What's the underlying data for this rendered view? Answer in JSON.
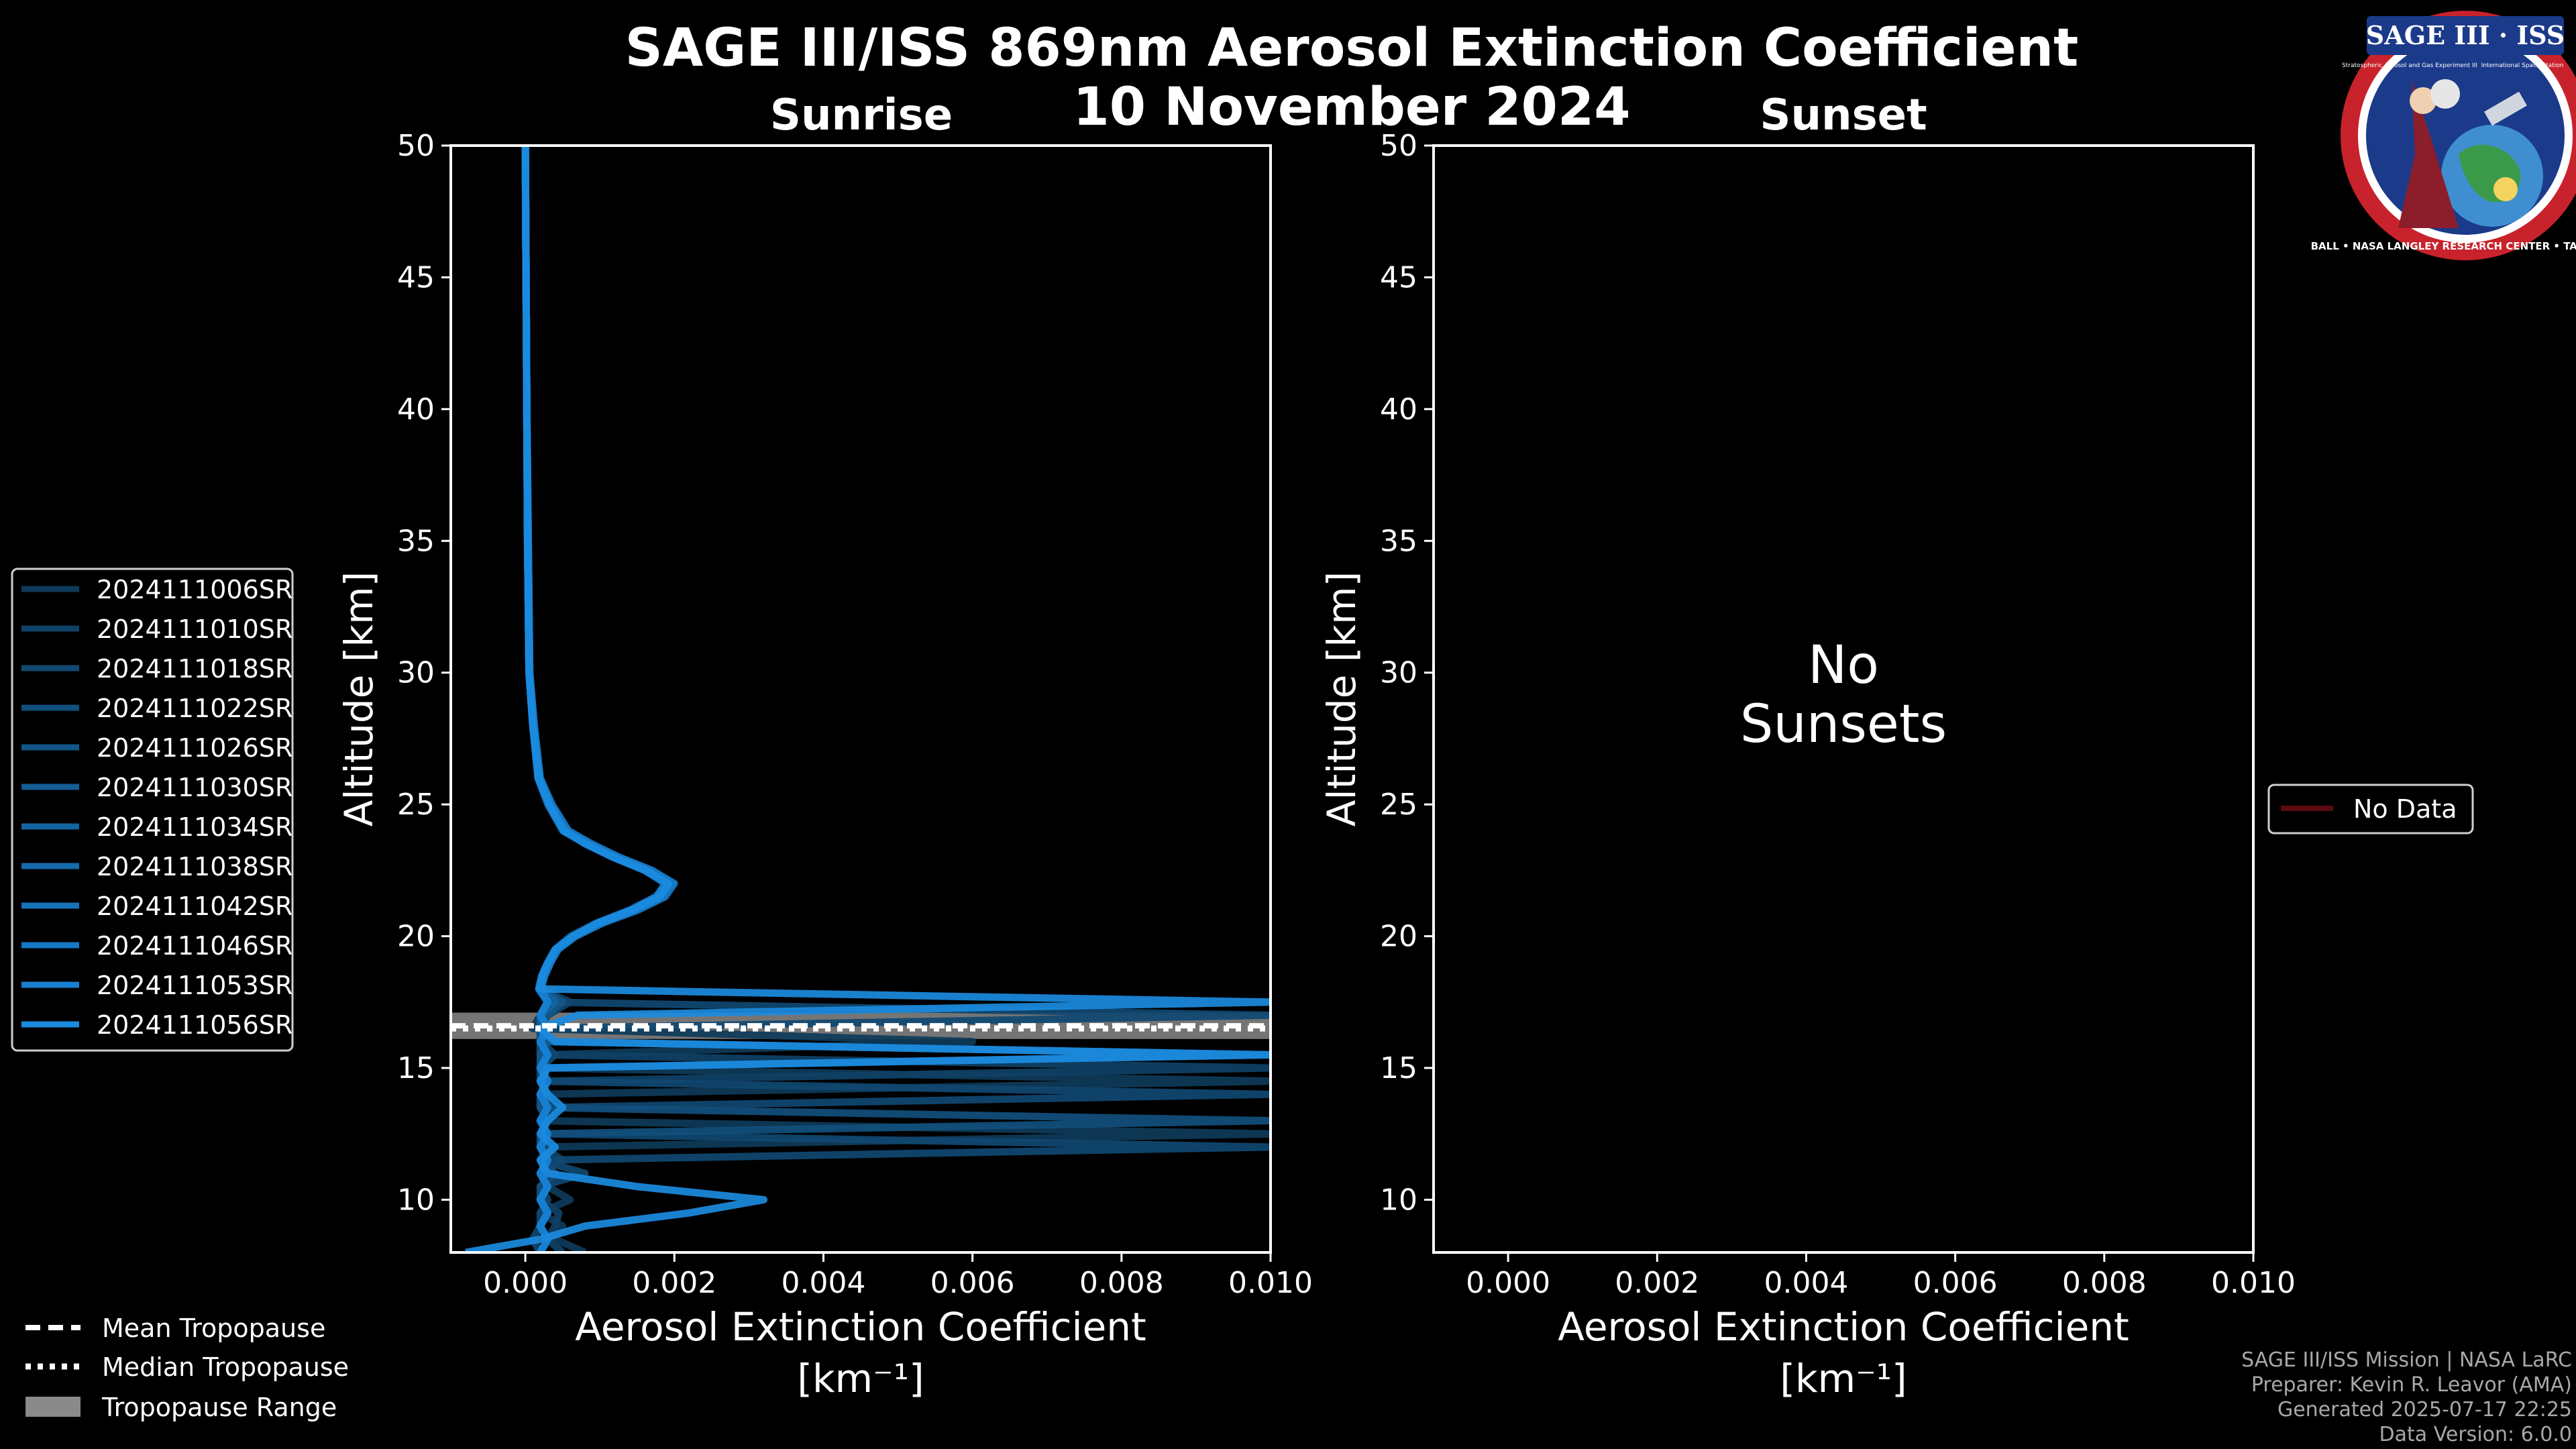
{
  "title": "SAGE III/ISS 869nm Aerosol Extinction Coefficient",
  "date": "10 November 2024",
  "logo": {
    "title": "SAGE III · ISS",
    "ring_text": "BALL • NASA LANGLEY RESEARCH CENTER • TAS • ESA",
    "small_text_left": "Stratospheric Aerosol and Gas Experiment III",
    "small_text_right": "International Space Station"
  },
  "credits": [
    "SAGE III/ISS Mission | NASA LaRC",
    "Preparer: Kevin R. Leavor (AMA)",
    "Generated 2025-07-17 22:25",
    "Data Version: 6.0.0"
  ],
  "legend_left": {
    "entries": [
      "2024111006SR",
      "2024111010SR",
      "2024111018SR",
      "2024111022SR",
      "2024111026SR",
      "2024111030SR",
      "2024111034SR",
      "2024111038SR",
      "2024111042SR",
      "2024111046SR",
      "2024111053SR",
      "2024111056SR"
    ],
    "colors": [
      "#0e3b5a",
      "#0f4166",
      "#104871",
      "#114f7d",
      "#125689",
      "#135d95",
      "#1464a1",
      "#156bad",
      "#1672b9",
      "#1779c5",
      "#1880d1",
      "#1b8bdf"
    ]
  },
  "legend_tropopause": {
    "mean": "Mean Tropopause",
    "median": "Median Tropopause",
    "range": "Tropopause Range"
  },
  "legend_right": {
    "label": "No Data",
    "color": "#5a0a10"
  },
  "chart_data": [
    {
      "type": "line",
      "panel": "Sunrise",
      "title": "Sunrise",
      "xlabel": "Aerosol Extinction Coefficient",
      "xunit": "[km⁻¹]",
      "ylabel": "Altitude [km]",
      "xlim": [
        -0.001,
        0.01
      ],
      "ylim": [
        8,
        50
      ],
      "xticks": [
        "0.000",
        "0.002",
        "0.004",
        "0.006",
        "0.008",
        "0.010"
      ],
      "xtick_values": [
        0,
        0.002,
        0.004,
        0.006,
        0.008,
        0.01
      ],
      "yticks": [
        10,
        15,
        20,
        25,
        30,
        35,
        40,
        45,
        50
      ],
      "tropopause": {
        "mean": 16.6,
        "median": 16.5,
        "range": [
          16.1,
          17.1
        ]
      },
      "altitude": [
        50,
        45,
        40,
        35,
        30,
        28,
        26,
        25,
        24,
        23.5,
        23,
        22.5,
        22,
        21.5,
        21,
        20.5,
        20,
        19.5,
        19,
        18.5,
        18,
        17.5,
        17,
        16.5,
        16,
        15.5,
        15,
        14.5,
        14,
        13.5,
        13,
        12.5,
        12,
        11.5,
        11,
        10.5,
        10,
        9.5,
        9,
        8.5,
        8
      ],
      "series": [
        {
          "name": "2024111006SR",
          "values": [
            0,
            1e-05,
            2e-05,
            3e-05,
            5e-05,
            0.0001,
            0.00018,
            0.00032,
            0.00052,
            0.0008,
            0.00118,
            0.0016,
            0.0019,
            0.00175,
            0.0014,
            0.00095,
            0.0006,
            0.0004,
            0.0003,
            0.00022,
            0.00018,
            0.00035,
            0.0002,
            0.0001,
            0.006,
            0.0003,
            0.0002,
            0.01,
            0.0002,
            0.0004,
            0.0002,
            0.01,
            0.00025,
            0.0005,
            0.0002,
            0.0003,
            0.0006,
            0.0002,
            0.0005,
            0.0004,
            0.0008
          ]
        },
        {
          "name": "2024111010SR",
          "values": [
            0,
            1e-05,
            2e-05,
            4e-05,
            6e-05,
            0.00012,
            0.0002,
            0.00035,
            0.00058,
            0.0009,
            0.00125,
            0.0017,
            0.00198,
            0.00185,
            0.0015,
            0.001,
            0.00065,
            0.00042,
            0.00032,
            0.00024,
            0.0002,
            0.0006,
            0.0003,
            0.0002,
            0.0003,
            0.0002,
            0.01,
            0.0003,
            0.0002,
            0.0004,
            0.0003,
            0.0002,
            0.00025,
            0.00045,
            0.0002,
            0.0003,
            0.0002,
            0.00045,
            0.0004,
            0.0003,
            0.0005
          ]
        },
        {
          "name": "2024111018SR",
          "values": [
            0,
            1e-05,
            2e-05,
            3e-05,
            5e-05,
            0.0001,
            0.00017,
            0.0003,
            0.0005,
            0.00082,
            0.0012,
            0.00163,
            0.00192,
            0.0018,
            0.00145,
            0.00098,
            0.00064,
            0.0004,
            0.00031,
            0.00023,
            0.00019,
            0.0003,
            0.01,
            0.0002,
            0.0002,
            0.0004,
            0.0002,
            0.0002,
            0.01,
            0.0003,
            0.0002,
            0.0003,
            0.01,
            0.0002,
            0.0008,
            0.0002,
            0.0003,
            0.0002,
            0.0002,
            0.0001,
            0.0002
          ]
        },
        {
          "name": "2024111022SR",
          "values": [
            0,
            1e-05,
            2e-05,
            3e-05,
            6e-05,
            0.00011,
            0.00019,
            0.00034,
            0.00055,
            0.00086,
            0.00122,
            0.00166,
            0.00195,
            0.00182,
            0.00148,
            0.00102,
            0.00066,
            0.00043,
            0.00033,
            0.00025,
            0.0002,
            0.0004,
            0.0002,
            0.0003,
            0.0002,
            0.0002,
            0.0003,
            0.0002,
            0.0003,
            0.0002,
            0.01,
            0.0002,
            0.0003,
            0.0002,
            0.0004,
            0.0002,
            0.0002,
            0.0003,
            0.0002,
            0.0003,
            0.0002
          ]
        },
        {
          "name": "2024111026SR",
          "values": [
            0,
            1e-05,
            2e-05,
            3e-05,
            5e-05,
            0.0001,
            0.00018,
            0.00033,
            0.00054,
            0.00084,
            0.0012,
            0.00164,
            0.00193,
            0.0018,
            0.00146,
            0.001,
            0.00065,
            0.00042,
            0.00032,
            0.00024,
            0.0002,
            0.0005,
            0.0003,
            0.0002,
            0.0003,
            0.0002,
            0.0002,
            0.0003,
            0.0002,
            0.0002,
            0.0003,
            0.0002,
            0.0002,
            0.0003,
            0.0002,
            0.0003,
            0.0002,
            0.0003,
            0.0002,
            0.0003,
            0.0002
          ]
        },
        {
          "name": "2024111030SR",
          "values": [
            0,
            1e-05,
            2e-05,
            4e-05,
            6e-05,
            0.00012,
            0.0002,
            0.00036,
            0.00058,
            0.00088,
            0.00126,
            0.0017,
            0.002,
            0.00188,
            0.00152,
            0.00104,
            0.00068,
            0.00044,
            0.00034,
            0.00026,
            0.00021,
            0.0003,
            0.0002,
            0.0002,
            0.0003,
            0.01,
            0.0002,
            0.0003,
            0.0002,
            0.0003,
            0.0002,
            0.0003,
            0.0002,
            0.0003,
            0.0002,
            0.0003,
            0.0002,
            0.0003,
            0.0002,
            0.0003,
            0.0002
          ]
        },
        {
          "name": "2024111034SR",
          "values": [
            0,
            1e-05,
            2e-05,
            3e-05,
            5e-05,
            0.0001,
            0.00018,
            0.00032,
            0.00053,
            0.00083,
            0.00119,
            0.00162,
            0.00191,
            0.00179,
            0.00144,
            0.00098,
            0.00064,
            0.00041,
            0.00031,
            0.00023,
            0.00019,
            0.0004,
            0.0002,
            0.0003,
            0.0002,
            0.0003,
            0.0002,
            0.0003,
            0.0002,
            0.0003,
            0.0002,
            0.0003,
            0.0002,
            0.0003,
            0.0002,
            0.0003,
            0.0002,
            0.0003,
            0.0002,
            0.0003,
            0.0002
          ]
        },
        {
          "name": "2024111038SR",
          "values": [
            0,
            1e-05,
            2e-05,
            3e-05,
            5e-05,
            0.00011,
            0.00019,
            0.00034,
            0.00056,
            0.00087,
            0.00124,
            0.00168,
            0.00197,
            0.00184,
            0.00149,
            0.00102,
            0.00066,
            0.00043,
            0.00033,
            0.00025,
            0.0002,
            0.0003,
            0.0002,
            0.0003,
            0.0002,
            0.0003,
            0.0002,
            0.0003,
            0.0002,
            0.0003,
            0.0002,
            0.0003,
            0.0002,
            0.0003,
            0.0002,
            0.0003,
            0.0002,
            0.0003,
            0.0002,
            0.0003,
            0.0002
          ]
        },
        {
          "name": "2024111042SR",
          "values": [
            0,
            1e-05,
            2e-05,
            3e-05,
            5e-05,
            0.0001,
            0.00018,
            0.00033,
            0.00054,
            0.00085,
            0.00121,
            0.00165,
            0.00194,
            0.00181,
            0.00147,
            0.001,
            0.00065,
            0.00042,
            0.00032,
            0.00024,
            0.0002,
            0.0003,
            0.0002,
            0.0003,
            0.0002,
            0.0003,
            0.0002,
            0.0003,
            0.0002,
            0.0003,
            0.0002,
            0.0003,
            0.0002,
            0.0003,
            0.0002,
            0.0003,
            0.0002,
            0.0003,
            0.0002,
            0.0003,
            0.0002
          ]
        },
        {
          "name": "2024111046SR",
          "values": [
            0,
            1e-05,
            2e-05,
            4e-05,
            6e-05,
            0.00012,
            0.0002,
            0.00035,
            0.00057,
            0.00088,
            0.00125,
            0.00169,
            0.00199,
            0.00186,
            0.0015,
            0.00103,
            0.00067,
            0.00044,
            0.00034,
            0.00026,
            0.00021,
            0.0003,
            0.0002,
            0.0003,
            0.0002,
            0.0003,
            0.0002,
            0.0003,
            0.0002,
            0.0003,
            0.0002,
            0.0003,
            0.0002,
            0.0003,
            0.0002,
            0.0003,
            0.0002,
            0.0003,
            0.0002,
            0.0003,
            0.0002
          ]
        },
        {
          "name": "2024111053SR",
          "values": [
            0,
            1e-05,
            2e-05,
            3e-05,
            5e-05,
            0.0001,
            0.00017,
            0.00031,
            0.00051,
            0.00081,
            0.00117,
            0.0016,
            0.00188,
            0.00176,
            0.00142,
            0.00097,
            0.00063,
            0.0004,
            0.0003,
            0.00022,
            0.00018,
            0.0003,
            0.0002,
            0.0003,
            0.0002,
            0.0003,
            0.0002,
            0.0003,
            0.0002,
            0.0003,
            0.0002,
            0.0003,
            0.0002,
            0.0003,
            0.0002,
            0.0003,
            0.0002,
            0.0003,
            0.0002,
            0.0003,
            0.0002
          ]
        },
        {
          "name": "2024111056SR",
          "values": [
            0,
            1e-05,
            2e-05,
            3e-05,
            5e-05,
            0.0001,
            0.00018,
            0.00032,
            0.00052,
            0.00082,
            0.00118,
            0.00162,
            0.00192,
            0.0018,
            0.00145,
            0.00098,
            0.00064,
            0.00041,
            0.00031,
            0.00023,
            0.0002,
            0.01,
            0.0007,
            0.0002,
            0.0004,
            0.01,
            0.0003,
            0.0002,
            0.0003,
            0.0005,
            0.0003,
            0.0002,
            0.0004,
            0.0002,
            0.0003,
            0.0015,
            0.0032,
            0.0022,
            0.0008,
            0.0002,
            -0.0008
          ]
        }
      ]
    },
    {
      "type": "line",
      "panel": "Sunset",
      "title": "Sunset",
      "xlabel": "Aerosol Extinction Coefficient",
      "xunit": "[km⁻¹]",
      "ylabel": "Altitude [km]",
      "xlim": [
        -0.001,
        0.01
      ],
      "ylim": [
        8,
        50
      ],
      "xticks": [
        "0.000",
        "0.002",
        "0.004",
        "0.006",
        "0.008",
        "0.010"
      ],
      "xtick_values": [
        0,
        0.002,
        0.004,
        0.006,
        0.008,
        0.01
      ],
      "yticks": [
        10,
        15,
        20,
        25,
        30,
        35,
        40,
        45,
        50
      ],
      "no_data_text": [
        "No",
        "Sunsets"
      ],
      "series": []
    }
  ]
}
